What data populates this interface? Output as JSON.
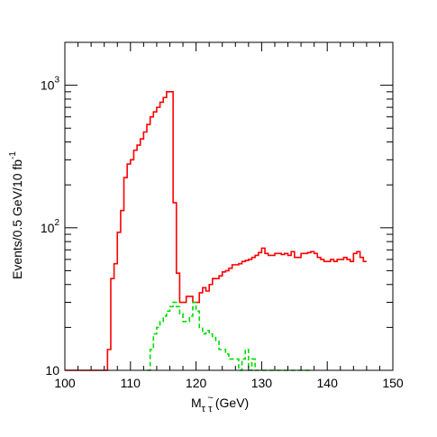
{
  "chart_data": {
    "type": "line",
    "x_axis": {
      "range": [
        100,
        150
      ],
      "ticks": [
        100,
        110,
        120,
        130,
        140,
        150
      ],
      "tick_labels": [
        "100",
        "110",
        "120",
        "130",
        "140",
        "150"
      ],
      "label": "M",
      "label_subscript": "τ τ",
      "label_tilde": "~",
      "label_unit": "(GeV)",
      "bin_width": 0.5
    },
    "y_axis": {
      "scale": "log",
      "range": [
        10,
        2000
      ],
      "major_ticks": [
        10,
        100,
        1000
      ],
      "tick_base": "10",
      "tick_exponents": [
        "",
        "2",
        "3"
      ],
      "label": "Events/0.5 GeV/10 fb",
      "label_superscript": "-1"
    },
    "series": [
      {
        "line_style": "solid",
        "color": "#ff0000",
        "x_start": 100,
        "bin_width": 0.5,
        "values": [
          10,
          10,
          10,
          10,
          10,
          10,
          10,
          10,
          10,
          10,
          10,
          10,
          10,
          14,
          44,
          56,
          93,
          132,
          225,
          280,
          300,
          350,
          380,
          420,
          470,
          530,
          600,
          650,
          700,
          760,
          820,
          900,
          900,
          150,
          48,
          30,
          30,
          33,
          33,
          30,
          30,
          35,
          38,
          36,
          40,
          44,
          44,
          46,
          49,
          50,
          52,
          55,
          55,
          56,
          58,
          59,
          60,
          62,
          64,
          67,
          72,
          66,
          64,
          64,
          66,
          66,
          65,
          66,
          64,
          68,
          62,
          62,
          66,
          66,
          67,
          68,
          66,
          62,
          60,
          58,
          58,
          60,
          58,
          60,
          60,
          62,
          60,
          58,
          66,
          68,
          62,
          58
        ]
      },
      {
        "line_style": "dashed",
        "color": "#00dd00",
        "x_start": 112.5,
        "bin_width": 0.5,
        "values": [
          10,
          14,
          18,
          20,
          22,
          24,
          26,
          28,
          30,
          28,
          25,
          22,
          22,
          24,
          30,
          26,
          20,
          18,
          19,
          18,
          17,
          16,
          14,
          14,
          13,
          12,
          12,
          12,
          10,
          12,
          14,
          10,
          12,
          10,
          8,
          9,
          8,
          8,
          10,
          8,
          8,
          8,
          7,
          7,
          8,
          7,
          7,
          9,
          10,
          8
        ]
      }
    ]
  }
}
